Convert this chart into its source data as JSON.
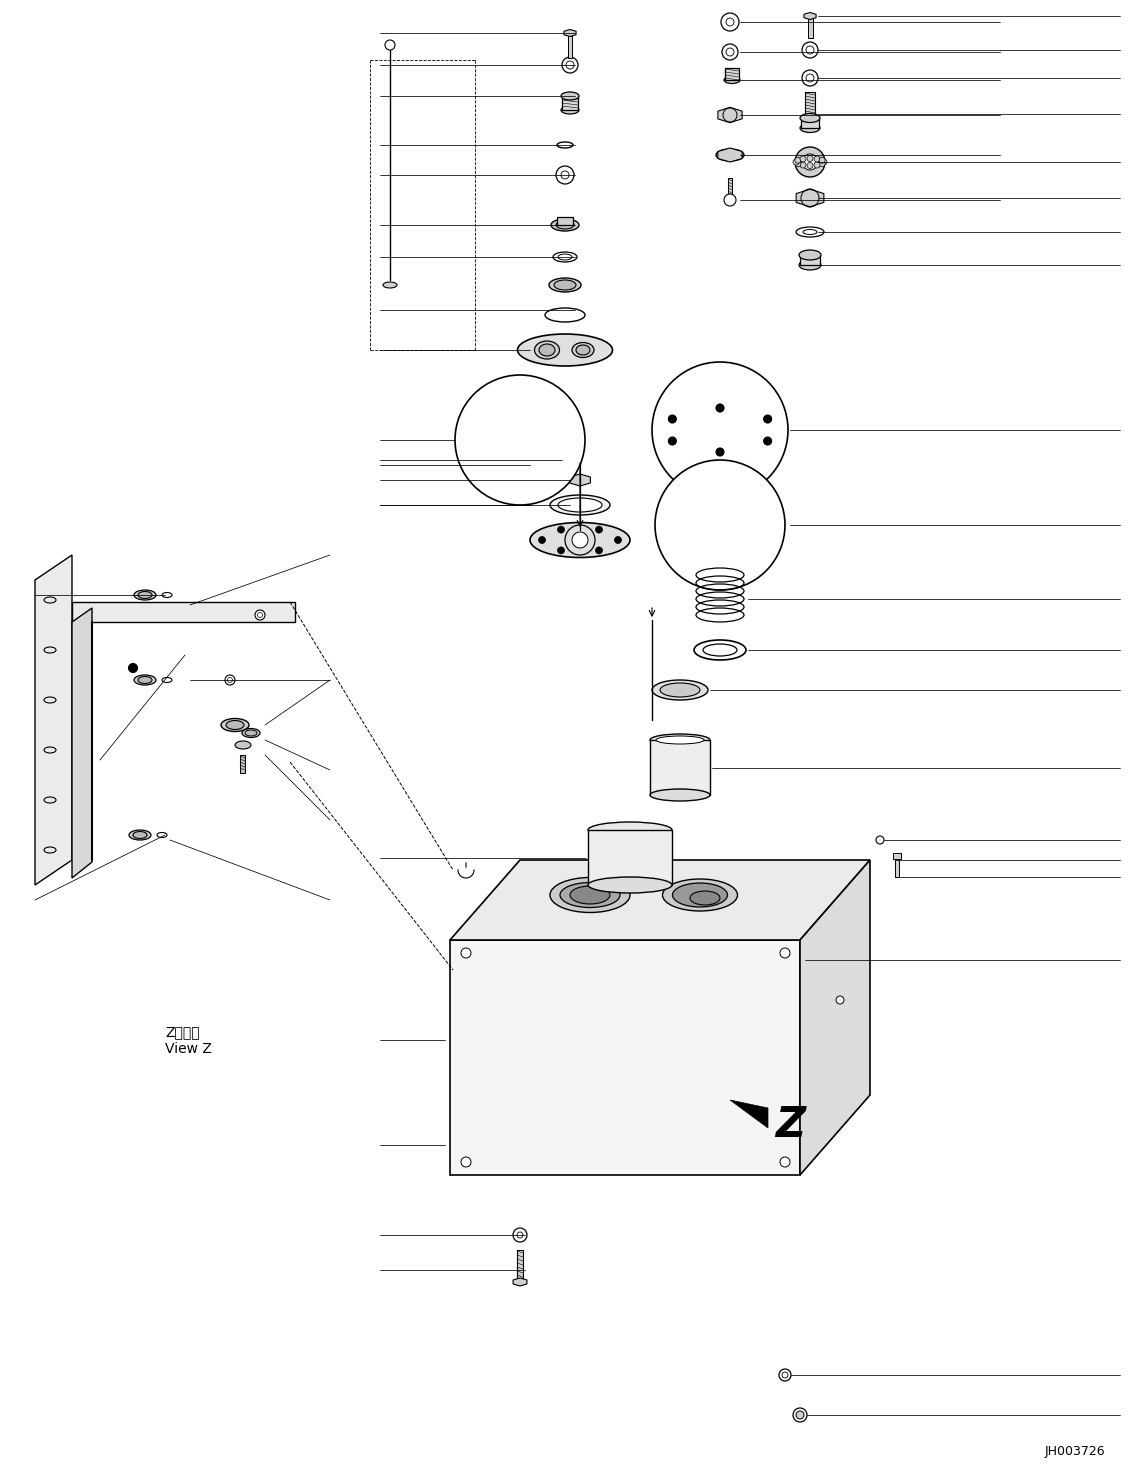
{
  "fig_width": 11.39,
  "fig_height": 14.69,
  "dpi": 100,
  "bg_color": "#ffffff",
  "line_color": "#000000",
  "part_code": "JH003726",
  "view_label_jp": "Z　　視",
  "view_label_en": "View Z",
  "z_label": "Z"
}
